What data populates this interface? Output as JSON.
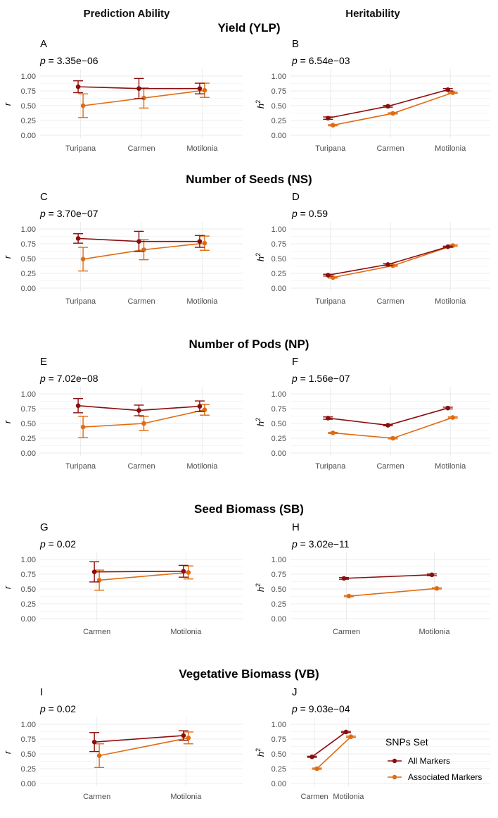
{
  "figure": {
    "col_headers": [
      "Prediction Ability",
      "Heritability"
    ],
    "legend": {
      "title": "SNPs Set",
      "items": [
        {
          "label": "All Markers",
          "color": "#8B0E0E"
        },
        {
          "label": "Associated Markers",
          "color": "#E06C12"
        }
      ]
    }
  },
  "rows": [
    {
      "title": "Yield (YLP)"
    },
    {
      "title": "Number of Seeds (NS)"
    },
    {
      "title": "Number of Pods (NP)"
    },
    {
      "title": "Seed Biomass (SB)"
    },
    {
      "title": "Vegetative Biomass (VB)"
    }
  ],
  "chart_data": [
    {
      "type": "line",
      "panel": "A",
      "metric": "prediction_ability",
      "p_value": "3.35e−06",
      "ylabel": "r",
      "ylim": [
        0,
        1
      ],
      "yticks": [
        "0.00",
        "0.25",
        "0.50",
        "0.75",
        "1.00"
      ],
      "categories": [
        "Turipana",
        "Carmen",
        "Motilonia"
      ],
      "series": [
        {
          "name": "All Markers",
          "values": [
            0.82,
            0.79,
            0.79
          ],
          "err": [
            0.1,
            0.17,
            0.09
          ]
        },
        {
          "name": "Associated Markers",
          "values": [
            0.5,
            0.63,
            0.76
          ],
          "err": [
            0.2,
            0.17,
            0.12
          ]
        }
      ]
    },
    {
      "type": "line",
      "panel": "B",
      "metric": "heritability",
      "p_value": "6.54e−03",
      "ylabel": "h2",
      "ylim": [
        0,
        1
      ],
      "yticks": [
        "0.00",
        "0.25",
        "0.50",
        "0.75",
        "1.00"
      ],
      "categories": [
        "Turipana",
        "Carmen",
        "Motilonia"
      ],
      "series": [
        {
          "name": "All Markers",
          "values": [
            0.29,
            0.49,
            0.77
          ],
          "err": [
            0.02,
            0.015,
            0.02
          ]
        },
        {
          "name": "Associated Markers",
          "values": [
            0.17,
            0.37,
            0.72
          ],
          "err": [
            0.01,
            0.01,
            0.01
          ]
        }
      ]
    },
    {
      "type": "line",
      "panel": "C",
      "metric": "prediction_ability",
      "p_value": "3.70e−07",
      "ylabel": "r",
      "ylim": [
        0,
        1
      ],
      "yticks": [
        "0.00",
        "0.25",
        "0.50",
        "0.75",
        "1.00"
      ],
      "categories": [
        "Turipana",
        "Carmen",
        "Motilonia"
      ],
      "series": [
        {
          "name": "All Markers",
          "values": [
            0.84,
            0.79,
            0.79
          ],
          "err": [
            0.08,
            0.17,
            0.1
          ]
        },
        {
          "name": "Associated Markers",
          "values": [
            0.49,
            0.65,
            0.76
          ],
          "err": [
            0.2,
            0.17,
            0.12
          ]
        }
      ]
    },
    {
      "type": "line",
      "panel": "D",
      "metric": "heritability",
      "p_value": "0.59",
      "ylabel": "h2",
      "ylim": [
        0,
        1
      ],
      "yticks": [
        "0.00",
        "0.25",
        "0.50",
        "0.75",
        "1.00"
      ],
      "categories": [
        "Turipana",
        "Carmen",
        "Motilonia"
      ],
      "series": [
        {
          "name": "All Markers",
          "values": [
            0.22,
            0.4,
            0.7
          ],
          "err": [
            0.015,
            0.015,
            0.01
          ]
        },
        {
          "name": "Associated Markers",
          "values": [
            0.18,
            0.38,
            0.72
          ],
          "err": [
            0.01,
            0.01,
            0.01
          ]
        }
      ]
    },
    {
      "type": "line",
      "panel": "E",
      "metric": "prediction_ability",
      "p_value": "7.02e−08",
      "ylabel": "r",
      "ylim": [
        0,
        1
      ],
      "yticks": [
        "0.00",
        "0.25",
        "0.50",
        "0.75",
        "1.00"
      ],
      "categories": [
        "Turipana",
        "Carmen",
        "Motilonia"
      ],
      "series": [
        {
          "name": "All Markers",
          "values": [
            0.8,
            0.72,
            0.79
          ],
          "err": [
            0.12,
            0.09,
            0.09
          ]
        },
        {
          "name": "Associated Markers",
          "values": [
            0.44,
            0.5,
            0.73
          ],
          "err": [
            0.18,
            0.12,
            0.09
          ]
        }
      ]
    },
    {
      "type": "line",
      "panel": "F",
      "metric": "heritability",
      "p_value": "1.56e−07",
      "ylabel": "h2",
      "ylim": [
        0,
        1
      ],
      "yticks": [
        "0.00",
        "0.25",
        "0.50",
        "0.75",
        "1.00"
      ],
      "categories": [
        "Turipana",
        "Carmen",
        "Motilonia"
      ],
      "series": [
        {
          "name": "All Markers",
          "values": [
            0.59,
            0.47,
            0.76
          ],
          "err": [
            0.02,
            0.01,
            0.015
          ]
        },
        {
          "name": "Associated Markers",
          "values": [
            0.34,
            0.25,
            0.6
          ],
          "err": [
            0.01,
            0.01,
            0.01
          ]
        }
      ]
    },
    {
      "type": "line",
      "panel": "G",
      "metric": "prediction_ability",
      "p_value": "0.02",
      "ylabel": "r",
      "ylim": [
        0,
        1
      ],
      "yticks": [
        "0.00",
        "0.25",
        "0.50",
        "0.75",
        "1.00"
      ],
      "categories": [
        "Carmen",
        "Motilonia"
      ],
      "series": [
        {
          "name": "All Markers",
          "values": [
            0.79,
            0.8
          ],
          "err": [
            0.17,
            0.1
          ]
        },
        {
          "name": "Associated Markers",
          "values": [
            0.65,
            0.78
          ],
          "err": [
            0.17,
            0.11
          ]
        }
      ]
    },
    {
      "type": "line",
      "panel": "H",
      "metric": "heritability",
      "p_value": "3.02e−11",
      "ylabel": "h2",
      "ylim": [
        0,
        1
      ],
      "yticks": [
        "0.00",
        "0.25",
        "0.50",
        "0.75",
        "1.00"
      ],
      "categories": [
        "Carmen",
        "Motilonia"
      ],
      "series": [
        {
          "name": "All Markers",
          "values": [
            0.68,
            0.74
          ],
          "err": [
            0.015,
            0.015
          ]
        },
        {
          "name": "Associated Markers",
          "values": [
            0.38,
            0.51
          ],
          "err": [
            0.01,
            0.01
          ]
        }
      ]
    },
    {
      "type": "line",
      "panel": "I",
      "metric": "prediction_ability",
      "p_value": "0.02",
      "ylabel": "r",
      "ylim": [
        0,
        1
      ],
      "yticks": [
        "0.00",
        "0.25",
        "0.50",
        "0.75",
        "1.00"
      ],
      "categories": [
        "Carmen",
        "Motilonia"
      ],
      "series": [
        {
          "name": "All Markers",
          "values": [
            0.7,
            0.81
          ],
          "err": [
            0.16,
            0.08
          ]
        },
        {
          "name": "Associated Markers",
          "values": [
            0.47,
            0.77
          ],
          "err": [
            0.2,
            0.1
          ]
        }
      ]
    },
    {
      "type": "line",
      "panel": "J",
      "metric": "heritability",
      "p_value": "9.03e−04",
      "ylabel": "h2",
      "ylim": [
        0,
        1
      ],
      "yticks": [
        "0.00",
        "0.25",
        "0.50",
        "0.75",
        "1.00"
      ],
      "categories": [
        "Carmen",
        "Motilonia"
      ],
      "series": [
        {
          "name": "All Markers",
          "values": [
            0.45,
            0.87
          ],
          "err": [
            0.01,
            0.01
          ]
        },
        {
          "name": "Associated Markers",
          "values": [
            0.25,
            0.79
          ],
          "err": [
            0.01,
            0.01
          ]
        }
      ]
    }
  ]
}
